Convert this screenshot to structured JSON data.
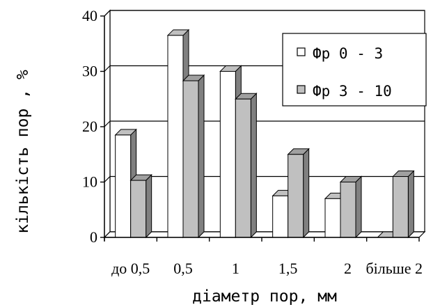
{
  "chart_data": {
    "type": "bar",
    "categories": [
      "до 0,5",
      "0,5",
      "1",
      "1,5",
      "2",
      "більше 2"
    ],
    "series": [
      {
        "name": "Фр 0 - 3",
        "values": [
          18.5,
          36.5,
          30,
          7.5,
          7,
          0
        ],
        "color": "#ffffff"
      },
      {
        "name": "Фр 3 - 10",
        "values": [
          10.3,
          28.3,
          25,
          15,
          10,
          11
        ],
        "color": "#c0c0c0"
      }
    ],
    "ylim": [
      0,
      40
    ],
    "yticks": [
      0,
      10,
      20,
      30,
      40
    ],
    "xlabel": "діаметр пор, мм",
    "ylabel": "кількість пор , %",
    "grid": true,
    "three_d": true,
    "legend_position": "top-right"
  }
}
